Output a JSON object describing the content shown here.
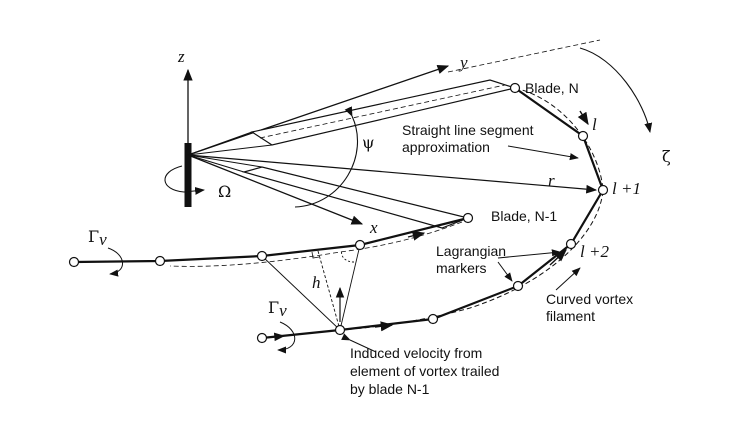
{
  "axes": {
    "z": "z",
    "y": "y",
    "x": "x",
    "psi": "ψ",
    "omega": "Ω",
    "r": "r",
    "zeta": "ζ",
    "h": "h"
  },
  "labels": {
    "blade_n": "Blade, N",
    "blade_n1": "Blade, N-1",
    "straight_line_1": "Straight line segment",
    "straight_line_2": "approximation",
    "lagrangian_1": "Lagrangian",
    "lagrangian_2": "markers",
    "curved_1": "Curved vortex",
    "curved_2": "filament",
    "induced_1": "Induced velocity from",
    "induced_2": "element of vortex trailed",
    "induced_3": "by blade N-1"
  },
  "node_labels": {
    "l": "l",
    "l1": "l +1",
    "l2": "l +2"
  },
  "circulation": {
    "symbol": "Γ",
    "subscript": "v"
  }
}
